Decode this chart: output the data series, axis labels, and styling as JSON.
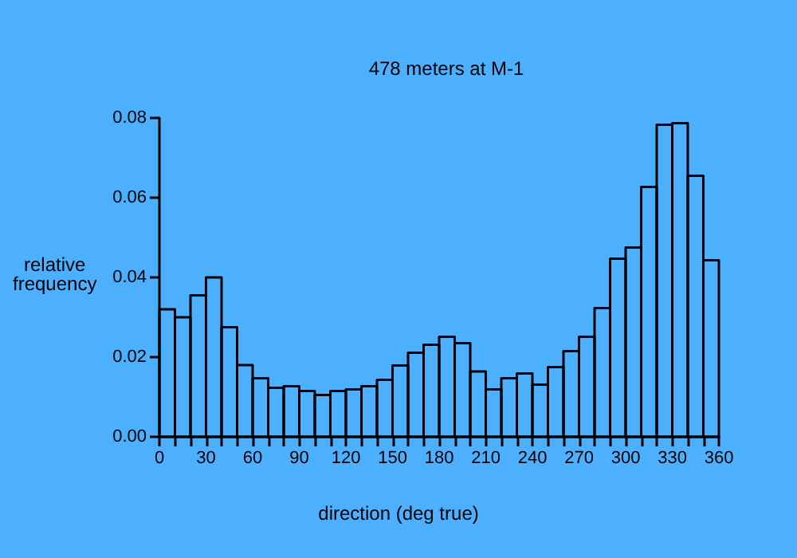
{
  "chart_data": {
    "type": "histogram",
    "title": "478 meters at M-1",
    "xlabel": "direction (deg true)",
    "ylabel": "relative\nfrequency",
    "bins": [
      0,
      10,
      20,
      30,
      40,
      50,
      60,
      70,
      80,
      90,
      100,
      110,
      120,
      130,
      140,
      150,
      160,
      170,
      180,
      190,
      200,
      210,
      220,
      230,
      240,
      250,
      260,
      270,
      280,
      290,
      300,
      310,
      320,
      330,
      340,
      350,
      360
    ],
    "values": [
      0.032,
      0.03,
      0.0355,
      0.04,
      0.0275,
      0.018,
      0.0147,
      0.0123,
      0.0127,
      0.0115,
      0.0105,
      0.0115,
      0.0119,
      0.0127,
      0.0143,
      0.0179,
      0.0211,
      0.0231,
      0.0251,
      0.0235,
      0.0164,
      0.0119,
      0.0147,
      0.0159,
      0.0131,
      0.0175,
      0.0215,
      0.0251,
      0.0323,
      0.0447,
      0.0475,
      0.0627,
      0.0783,
      0.0787,
      0.0655,
      0.0443
    ],
    "color": "#000000",
    "xlim": [
      0,
      360
    ],
    "xticks": [
      0,
      {
        "value": 10,
        "label": null
      },
      {
        "value": 20,
        "label": null
      },
      30,
      {
        "value": 40,
        "label": null
      },
      {
        "value": 50,
        "label": null
      },
      60,
      {
        "value": 70,
        "label": null
      },
      {
        "value": 80,
        "label": null
      },
      90,
      {
        "value": 100,
        "label": null
      },
      {
        "value": 110,
        "label": null
      },
      120,
      {
        "value": 130,
        "label": null
      },
      {
        "value": 140,
        "label": null
      },
      150,
      {
        "value": 160,
        "label": null
      },
      {
        "value": 170,
        "label": null
      },
      180,
      {
        "value": 190,
        "label": null
      },
      {
        "value": 200,
        "label": null
      },
      210,
      {
        "value": 220,
        "label": null
      },
      {
        "value": 230,
        "label": null
      },
      240,
      {
        "value": 250,
        "label": null
      },
      {
        "value": 260,
        "label": null
      },
      270,
      {
        "value": 280,
        "label": null
      },
      {
        "value": 290,
        "label": null
      },
      300,
      {
        "value": 310,
        "label": null
      },
      {
        "value": 320,
        "label": null
      },
      330,
      {
        "value": 340,
        "label": null
      },
      {
        "value": 350,
        "label": null
      },
      360
    ],
    "ylim": [
      0,
      0.08
    ],
    "yticks": [
      {
        "value": 0,
        "label": "0.00"
      },
      {
        "value": 0.02,
        "label": "0.02"
      },
      {
        "value": 0.04,
        "label": "0.04"
      },
      {
        "value": 0.06,
        "label": "0.06"
      },
      {
        "value": 0.08,
        "label": "0.08"
      }
    ],
    "grid": false
  }
}
